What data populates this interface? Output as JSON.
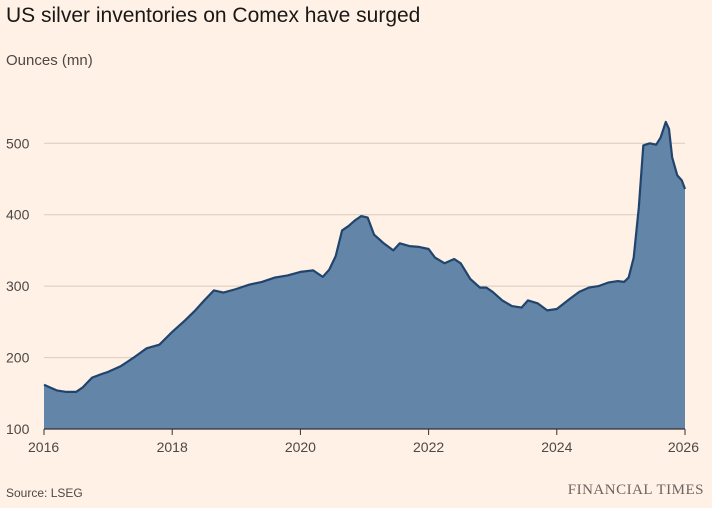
{
  "header": {
    "title": "US silver inventories on Comex have surged",
    "subtitle": "Ounces (mn)"
  },
  "footer": {
    "source": "Source: LSEG",
    "brand": "FINANCIAL TIMES"
  },
  "chart_data": {
    "type": "area",
    "title": "US silver inventories on Comex have surged",
    "ylabel": "Ounces (mn)",
    "xlabel": "",
    "xlim": [
      2016,
      2026
    ],
    "ylim": [
      100,
      540
    ],
    "x_ticks": [
      "2016",
      "2018",
      "2020",
      "2022",
      "2024",
      "2026"
    ],
    "y_ticks": [
      "100",
      "200",
      "300",
      "400",
      "500"
    ],
    "grid": true,
    "colors": {
      "fill": "#6285a8",
      "line": "#21446d",
      "background": "#fff1e5",
      "grid": "#d9cbbd"
    },
    "series": [
      {
        "x": [
          2016.0,
          2016.1,
          2016.2,
          2016.35,
          2016.5,
          2016.6,
          2016.75,
          2016.9,
          2017.0,
          2017.2,
          2017.4,
          2017.6,
          2017.8,
          2018.0,
          2018.2,
          2018.35,
          2018.5,
          2018.65,
          2018.8,
          2019.0,
          2019.2,
          2019.4,
          2019.6,
          2019.8,
          2020.0,
          2020.2,
          2020.35,
          2020.45,
          2020.55,
          2020.65,
          2020.75,
          2020.85,
          2020.95,
          2021.05,
          2021.15,
          2021.3,
          2021.45,
          2021.55,
          2021.7,
          2021.85,
          2022.0,
          2022.1,
          2022.25,
          2022.4,
          2022.5,
          2022.65,
          2022.8,
          2022.9,
          2023.0,
          2023.15,
          2023.3,
          2023.45,
          2023.55,
          2023.7,
          2023.85,
          2024.0,
          2024.2,
          2024.35,
          2024.5,
          2024.65,
          2024.8,
          2024.95,
          2025.05,
          2025.12,
          2025.2,
          2025.28,
          2025.35,
          2025.45,
          2025.55,
          2025.62,
          2025.7,
          2025.75,
          2025.8,
          2025.88,
          2025.95,
          2026.0
        ],
        "values": [
          162,
          158,
          154,
          152,
          152,
          158,
          172,
          177,
          180,
          188,
          200,
          213,
          218,
          236,
          252,
          265,
          280,
          294,
          291,
          296,
          302,
          306,
          312,
          315,
          320,
          322,
          313,
          323,
          342,
          378,
          384,
          392,
          398,
          396,
          372,
          360,
          350,
          360,
          356,
          355,
          352,
          340,
          332,
          338,
          332,
          310,
          298,
          298,
          292,
          280,
          272,
          270,
          280,
          276,
          266,
          268,
          282,
          292,
          298,
          300,
          305,
          307,
          306,
          312,
          340,
          410,
          497,
          500,
          498,
          508,
          530,
          520,
          480,
          455,
          448,
          436
        ]
      }
    ]
  }
}
